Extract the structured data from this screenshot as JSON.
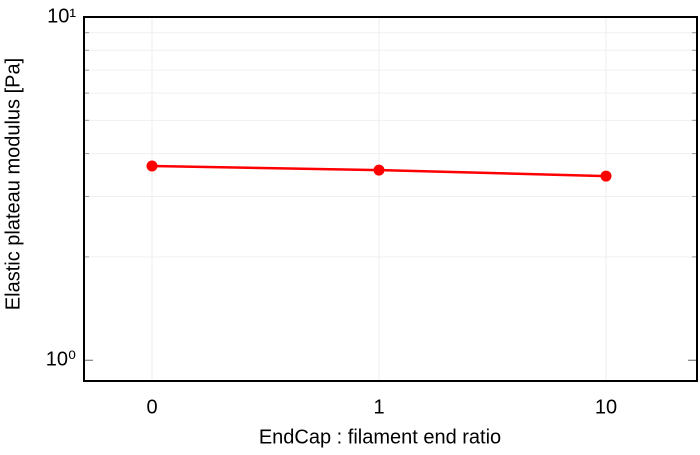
{
  "chart_data": {
    "type": "line",
    "y_label": "Elastic plateau modulus [Pa]",
    "x_label": "EndCap : filament end ratio",
    "categories": [
      "0",
      "1",
      "10"
    ],
    "values": [
      3.68,
      3.58,
      3.44
    ],
    "color": "#ff0000",
    "ylim": [
      0.87,
      10
    ],
    "yticks": [
      {
        "value": 1,
        "label": "10⁰"
      },
      {
        "value": 10,
        "label": "10¹"
      }
    ],
    "yminorticks": [
      2,
      3,
      4,
      5,
      6,
      7,
      8,
      9
    ],
    "log_y": true,
    "grid": true
  }
}
